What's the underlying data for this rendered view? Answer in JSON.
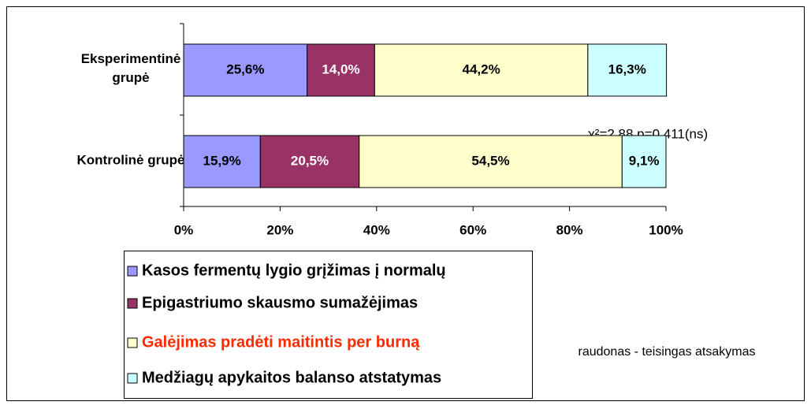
{
  "chart_data": {
    "type": "bar",
    "orientation": "horizontal",
    "stacked": true,
    "categories": [
      "Eksperimentinė\ngrupė",
      "Kontrolinė grupė"
    ],
    "series": [
      {
        "name": "Kasos fermentų lygio grįžimas į normalų",
        "color": "#9999ff",
        "values": [
          25.6,
          15.9
        ],
        "value_labels": [
          "25,6%",
          "15,9%"
        ]
      },
      {
        "name": "Epigastriumo skausmo sumažėjimas",
        "color": "#993366",
        "values": [
          14.0,
          20.5
        ],
        "value_labels": [
          "14,0%",
          "20,5%"
        ]
      },
      {
        "name": "Galėjimas pradėti maitintis per burną",
        "color": "#ffffcc",
        "values": [
          44.2,
          54.5
        ],
        "value_labels": [
          "44,2%",
          "54,5%"
        ],
        "legend_text_color": "#ff2a00"
      },
      {
        "name": "Medžiagų apykaitos balanso atstatymas",
        "color": "#ccffff",
        "values": [
          16.3,
          9.1
        ],
        "value_labels": [
          "16,3%",
          "9,1%"
        ]
      }
    ],
    "xlim": [
      0,
      100
    ],
    "xticks": [
      {
        "value": 0,
        "label": "0%"
      },
      {
        "value": 20,
        "label": "20%"
      },
      {
        "value": 40,
        "label": "40%"
      },
      {
        "value": 60,
        "label": "60%"
      },
      {
        "value": 80,
        "label": "80%"
      },
      {
        "value": 100,
        "label": "100%"
      }
    ],
    "annotations": [
      "χ²=2,88 p=0,411(ns)",
      "raudonas - teisingas atsakymas"
    ],
    "legend": "bottom-left"
  }
}
